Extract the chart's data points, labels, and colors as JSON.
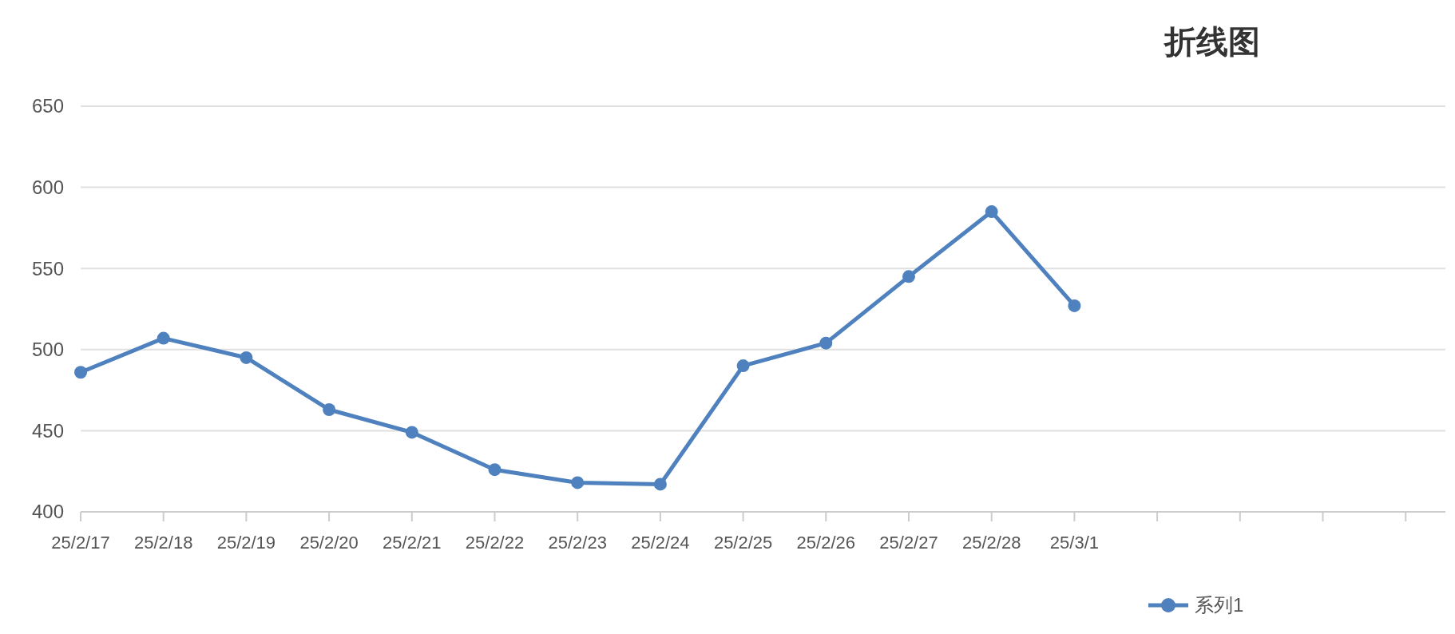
{
  "chart_data": {
    "type": "line",
    "title": "折线图",
    "categories": [
      "25/2/17",
      "25/2/18",
      "25/2/19",
      "25/2/20",
      "25/2/21",
      "25/2/22",
      "25/2/23",
      "25/2/24",
      "25/2/25",
      "25/2/26",
      "25/2/27",
      "25/2/28",
      "25/3/1",
      null,
      null,
      null,
      null
    ],
    "series": [
      {
        "name": "系列1",
        "color": "#4e81bd",
        "values": [
          486,
          507,
          495,
          463,
          449,
          426,
          418,
          417,
          490,
          504,
          545,
          585,
          527,
          null,
          null,
          null,
          null
        ]
      }
    ],
    "ylim": [
      400,
      650
    ],
    "yticks": [
      400,
      450,
      500,
      550,
      600,
      650
    ],
    "grid": "y",
    "legend": "bottom right",
    "marker": "circle",
    "line_style": "solid"
  }
}
